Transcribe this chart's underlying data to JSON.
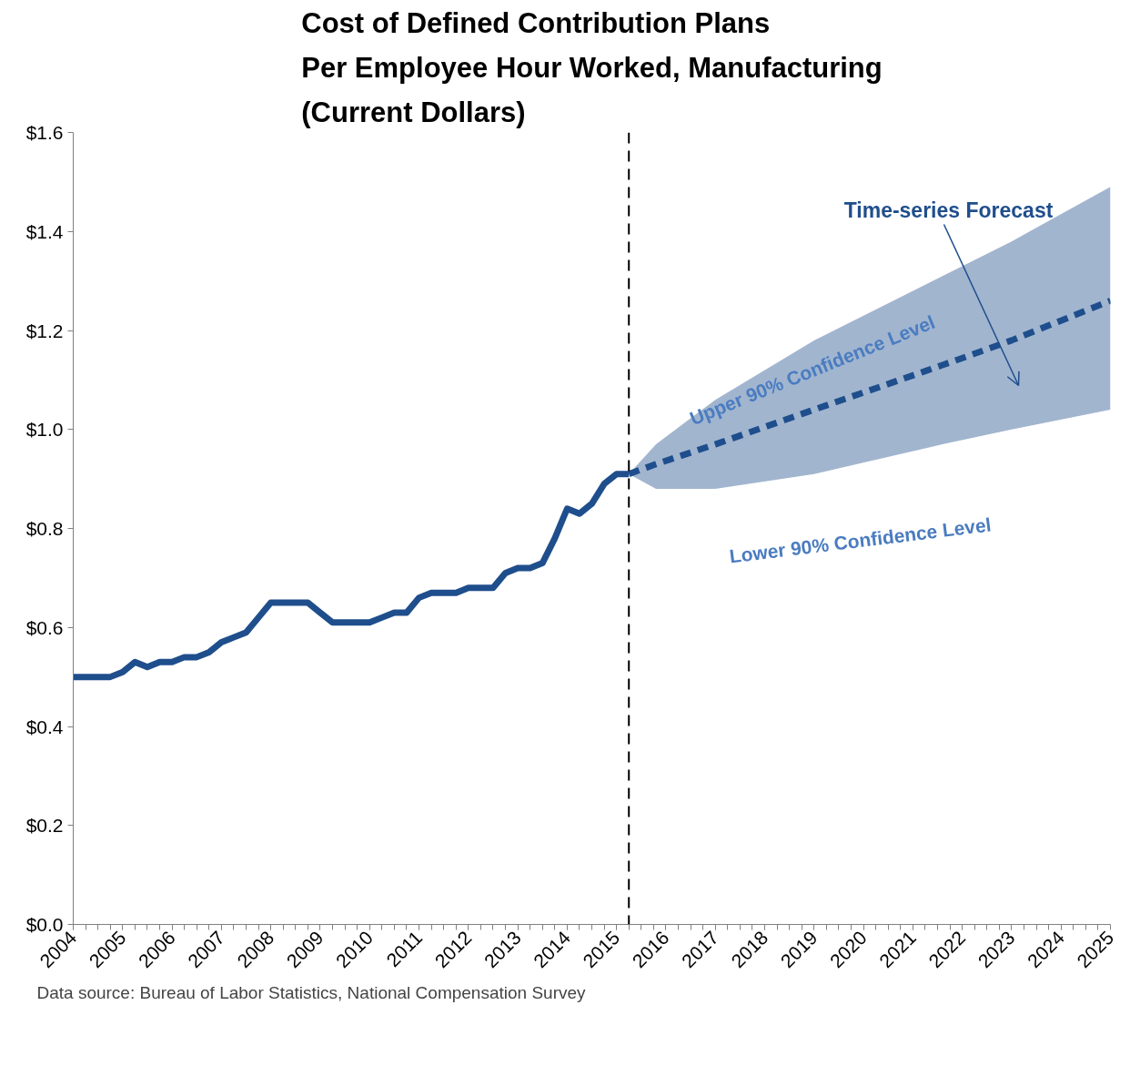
{
  "chart_data": {
    "type": "line",
    "title": "Cost of Defined Contribution Plans\nPer Employee Hour Worked, Manufacturing\n(Current Dollars)",
    "xlim": [
      2004,
      2025
    ],
    "xticks": [
      2004,
      2005,
      2006,
      2007,
      2008,
      2009,
      2010,
      2011,
      2012,
      2013,
      2014,
      2015,
      2016,
      2017,
      2018,
      2019,
      2020,
      2021,
      2022,
      2023,
      2024,
      2025
    ],
    "ylim": [
      0,
      1.6
    ],
    "yticks": [
      {
        "value": 0,
        "label": "$0.0"
      },
      {
        "value": 0.2,
        "label": "$0.2"
      },
      {
        "value": 0.4,
        "label": "$0.4"
      },
      {
        "value": 0.6,
        "label": "$0.6"
      },
      {
        "value": 0.8,
        "label": "$0.8"
      },
      {
        "value": 1.0,
        "label": "$1.0"
      },
      {
        "value": 1.2,
        "label": "$1.2"
      },
      {
        "value": 1.4,
        "label": "$1.4"
      },
      {
        "value": 1.6,
        "label": "$1.6"
      }
    ],
    "grid": false,
    "series": [
      {
        "color": "#1f4e8c",
        "line_style": "solid",
        "x": [
          2004,
          2004.25,
          2004.5,
          2004.75,
          2005,
          2005.25,
          2005.5,
          2005.75,
          2006,
          2006.25,
          2006.5,
          2006.75,
          2007,
          2007.25,
          2007.5,
          2007.75,
          2008,
          2008.25,
          2008.5,
          2008.75,
          2009,
          2009.25,
          2009.5,
          2009.75,
          2010,
          2010.25,
          2010.5,
          2010.75,
          2011,
          2011.25,
          2011.5,
          2011.75,
          2012,
          2012.25,
          2012.5,
          2012.75,
          2013,
          2013.25,
          2013.5,
          2013.75,
          2014,
          2014.25,
          2014.5,
          2014.75,
          2015,
          2015.25
        ],
        "values": [
          0.5,
          0.5,
          0.5,
          0.5,
          0.51,
          0.53,
          0.52,
          0.53,
          0.53,
          0.54,
          0.54,
          0.55,
          0.57,
          0.58,
          0.59,
          0.62,
          0.65,
          0.65,
          0.65,
          0.65,
          0.63,
          0.61,
          0.61,
          0.61,
          0.61,
          0.62,
          0.63,
          0.63,
          0.66,
          0.67,
          0.67,
          0.67,
          0.68,
          0.68,
          0.68,
          0.71,
          0.72,
          0.72,
          0.73,
          0.78,
          0.84,
          0.83,
          0.85,
          0.89,
          0.91,
          0.91
        ]
      },
      {
        "color": "#1f4e8c",
        "line_style": "dashed",
        "x": [
          2015.25,
          2015.8,
          2017,
          2019,
          2021.6,
          2023,
          2025
        ],
        "values": [
          0.91,
          0.93,
          0.97,
          1.04,
          1.13,
          1.18,
          1.26
        ],
        "lower": [
          0.91,
          0.88,
          0.88,
          0.91,
          0.97,
          1.0,
          1.04
        ],
        "upper": [
          0.91,
          0.97,
          1.06,
          1.18,
          1.31,
          1.38,
          1.49
        ]
      }
    ],
    "ref_lines": [
      {
        "axis": "x",
        "value": 2015.25,
        "color": "#000000",
        "line_style": "dashed"
      }
    ],
    "annotations": [
      "Time-series Forecast",
      "Upper 90% Confidence  Level",
      "Lower 90% Confidence Level",
      "Data source: Bureau of Labor Statistics, National Compensation Survey"
    ]
  }
}
